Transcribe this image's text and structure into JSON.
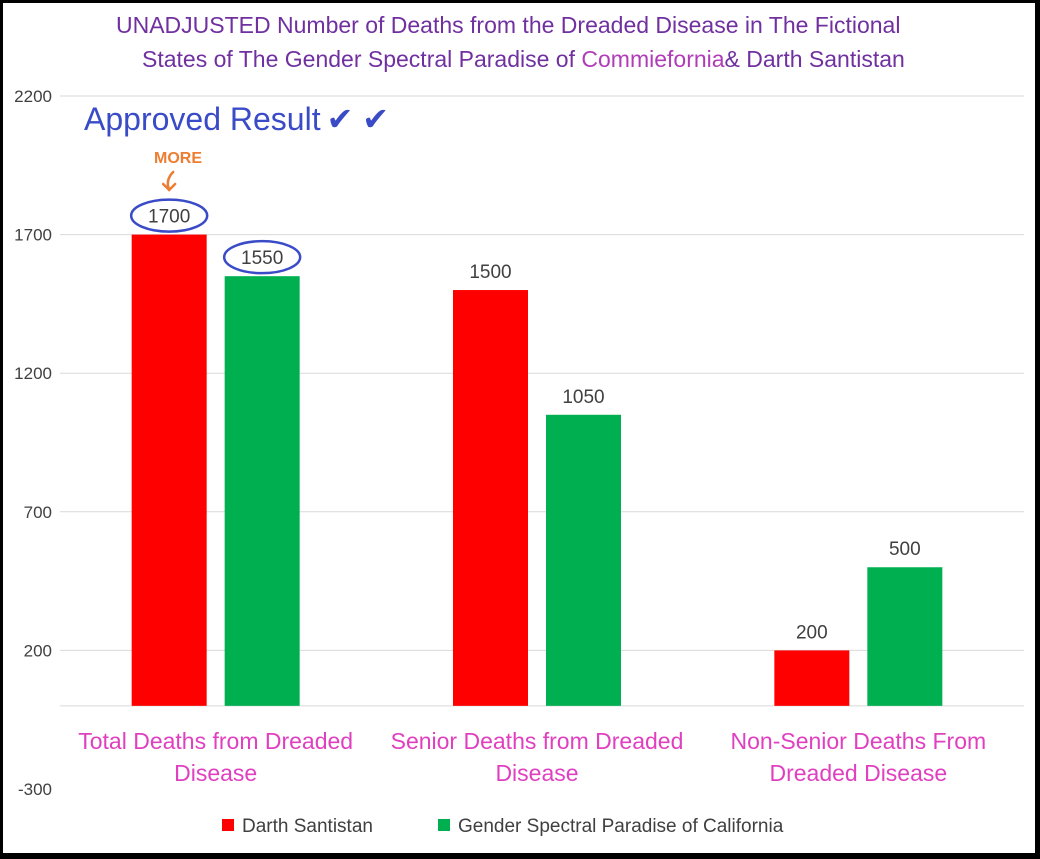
{
  "chart_data": {
    "type": "bar",
    "title_line1": "UNADJUSTED Number of Deaths from the Dreaded Disease in The Fictional",
    "title_line2_a": "States of The Gender Spectral Paradise of ",
    "title_line2_b": "Commiefornia",
    "title_line2_c": "& Darth Santistan",
    "categories": [
      [
        "Total Deaths from Dreaded",
        "Disease"
      ],
      [
        "Senior Deaths from Dreaded",
        "Disease"
      ],
      [
        "Non-Senior Deaths From",
        "Dreaded Disease"
      ]
    ],
    "series": [
      {
        "name": "Darth Santistan",
        "color": "#ff0000",
        "values": [
          1700,
          1500,
          200
        ]
      },
      {
        "name": "Gender Spectral Paradise of California",
        "color": "#00b050",
        "values": [
          1550,
          1050,
          500
        ]
      }
    ],
    "yticks": [
      2200,
      1700,
      1200,
      700,
      200,
      -300
    ],
    "ylim": [
      -300,
      2200
    ],
    "baseline": 0,
    "category_label_color": "#e040c0",
    "annotations": {
      "approved": "Approved Result",
      "checkmarks": "✔ ✔",
      "more": "MORE",
      "circled": [
        "1700",
        "1550"
      ]
    }
  }
}
